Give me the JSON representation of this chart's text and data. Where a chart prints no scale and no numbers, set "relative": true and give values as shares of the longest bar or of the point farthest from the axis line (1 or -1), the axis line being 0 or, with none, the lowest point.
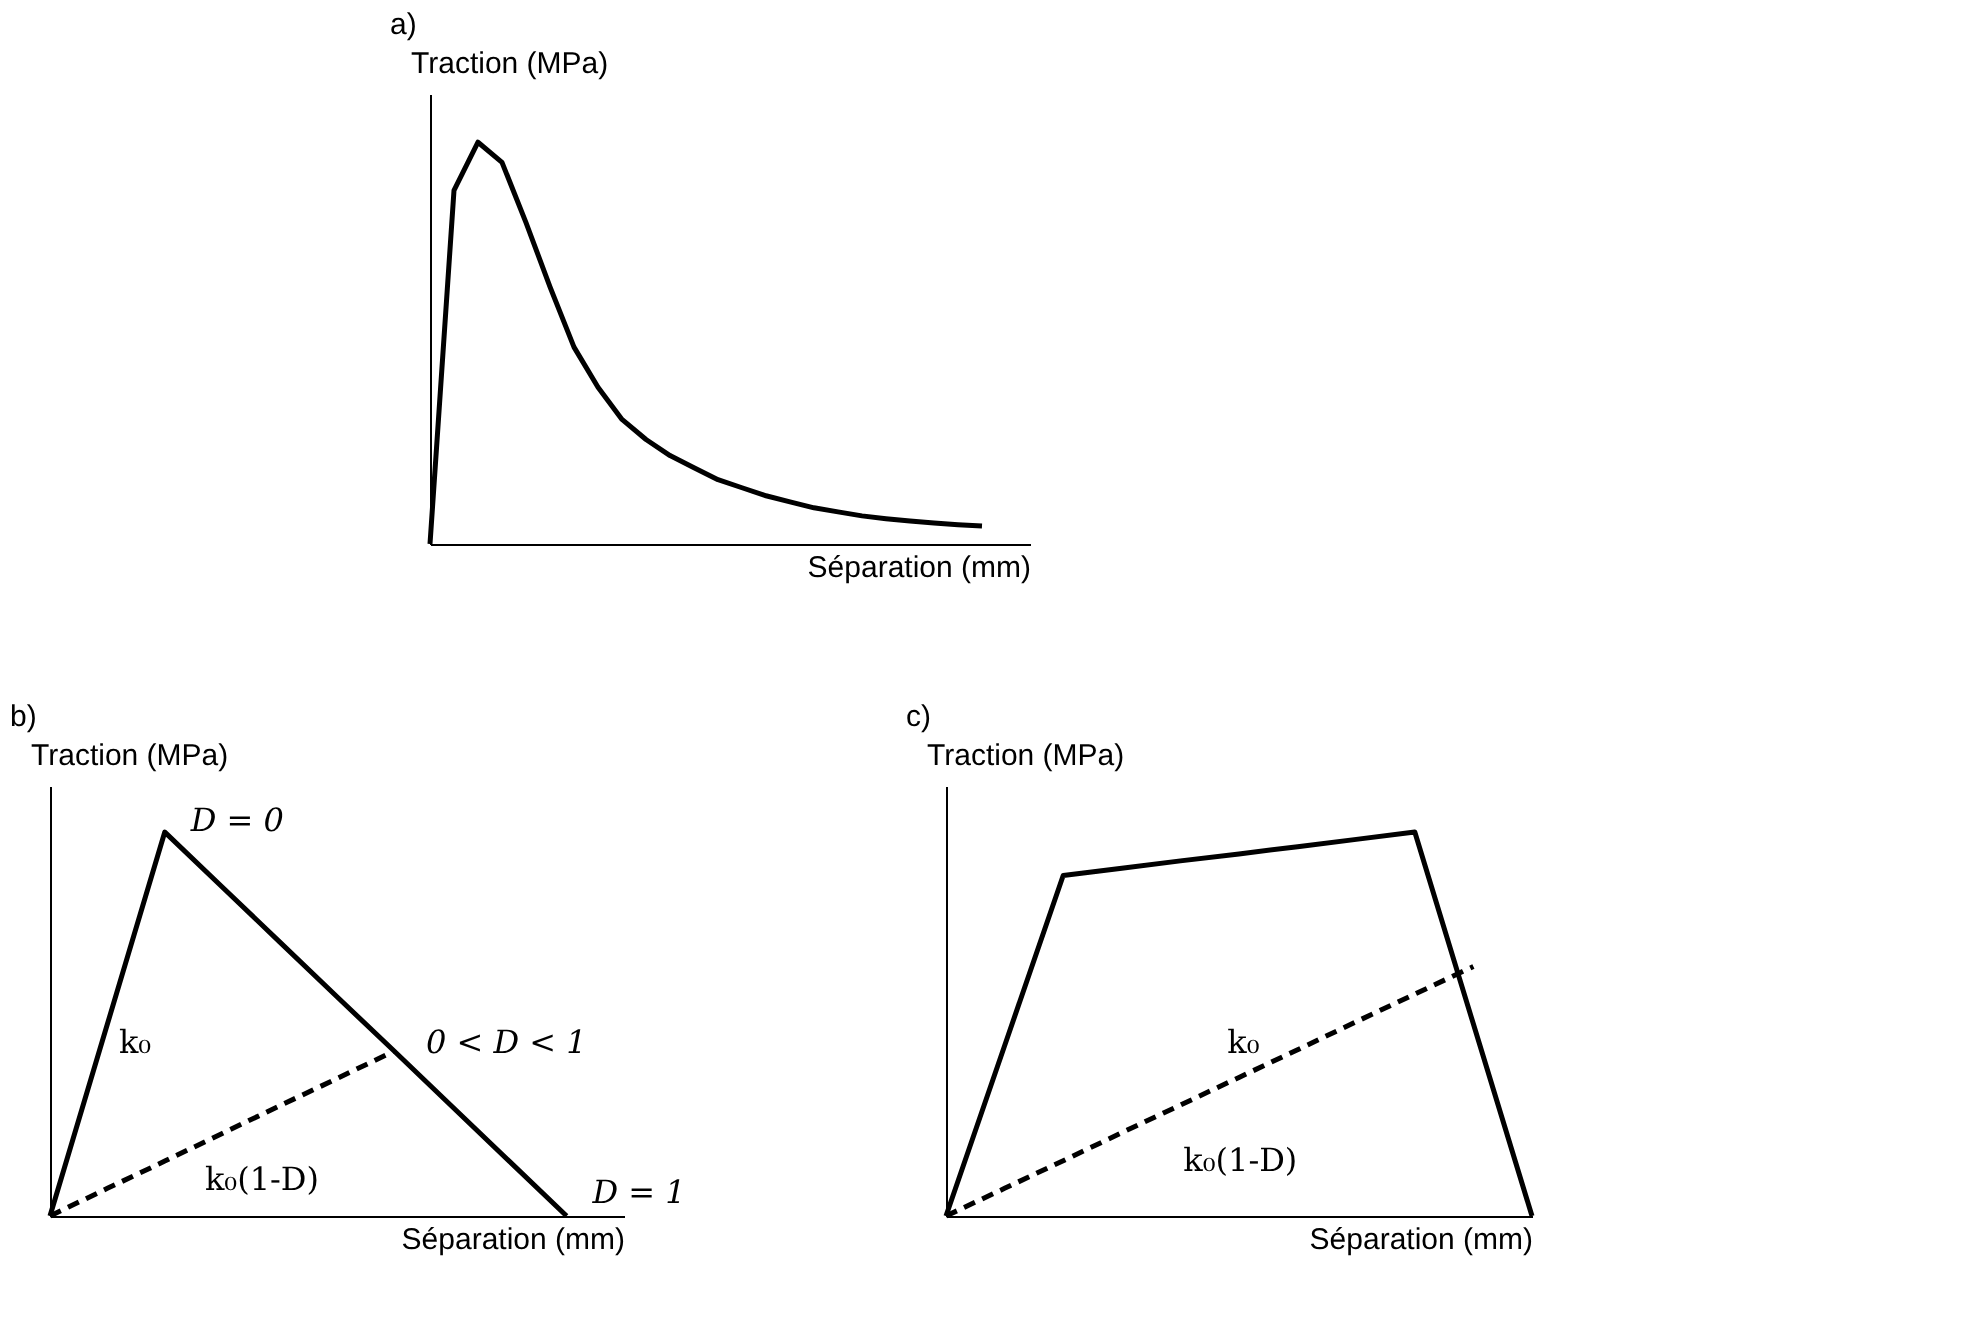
{
  "chart_data": [
    {
      "type": "line",
      "title": "a)",
      "relative": true,
      "xlabel": "Séparation (mm)",
      "ylabel": "Traction (MPa)",
      "tick_labels": false,
      "categories": [
        null,
        null,
        null,
        null,
        null,
        null,
        null,
        null,
        null,
        null,
        null,
        null,
        null,
        null,
        null,
        null,
        null,
        null,
        null,
        null,
        null,
        null,
        null,
        null,
        null,
        null
      ],
      "series": [
        {
          "color": "#000000",
          "line_style": "solid",
          "values": [
            0,
            0.88,
            1.0,
            0.95,
            0.8,
            0.64,
            0.49,
            0.39,
            0.31,
            0.26,
            0.22,
            0.19,
            0.16,
            0.14,
            0.12,
            0.105,
            0.09,
            0.08,
            0.07,
            0.063,
            0.057,
            0.052,
            0.048,
            0.045,
            null,
            null
          ]
        }
      ]
    },
    {
      "type": "line",
      "title": "b)",
      "relative": true,
      "xlabel": "Séparation (mm)",
      "ylabel": "Traction (MPa)",
      "tick_labels": false,
      "categories": [
        null,
        null,
        null,
        null,
        null,
        null,
        null,
        null,
        null,
        null,
        null
      ],
      "series": [
        {
          "color": "#000000",
          "line_style": "solid",
          "values": [
            0,
            0.5,
            1,
            0.857,
            0.714,
            0.571,
            0.429,
            0.286,
            0.143,
            0,
            null
          ]
        },
        {
          "color": "#000000",
          "line_style": "dashed",
          "values": [
            0,
            0.072,
            0.143,
            0.215,
            0.287,
            0.358,
            0.43,
            null,
            null,
            null,
            null
          ]
        }
      ],
      "annotations": [
        "D = 0",
        "0 < D < 1",
        "D = 1",
        "k₀",
        "k₀(1-D)"
      ]
    },
    {
      "type": "line",
      "title": "c)",
      "relative": true,
      "xlabel": "Séparation (mm)",
      "ylabel": "Traction (MPa)",
      "tick_labels": false,
      "categories": [
        null,
        null,
        null,
        null,
        null,
        null,
        null,
        null,
        null,
        null,
        null
      ],
      "series": [
        {
          "color": "#000000",
          "line_style": "solid",
          "values": [
            0,
            0.4435,
            0.887,
            0.906,
            0.925,
            0.943,
            0.962,
            0.981,
            1.0,
            0.5,
            0
          ]
        },
        {
          "color": "#000000",
          "line_style": "dashed",
          "values": [
            0,
            0.072,
            0.144,
            0.217,
            0.289,
            0.361,
            0.433,
            0.506,
            0.578,
            0.65,
            null
          ]
        }
      ],
      "annotations": [
        "k₀",
        "k₀(1-D)"
      ]
    }
  ]
}
